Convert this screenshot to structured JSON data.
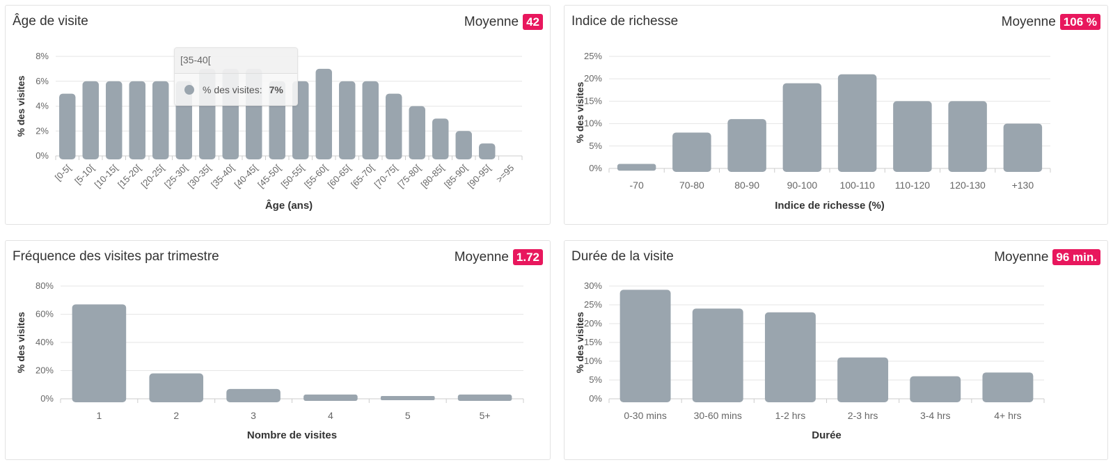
{
  "colors": {
    "bar": "#9aa5ae",
    "badge": "#e8175d",
    "grid": "#e6e6e6",
    "axis": "#cccccc"
  },
  "tooltip": {
    "title": "[35-40[",
    "series_label": "% des visites:",
    "value": "7%"
  },
  "chart_data": [
    {
      "id": "age",
      "type": "bar",
      "title": "Âge de visite",
      "average_label": "Moyenne",
      "average_value": "42",
      "xlabel": "Âge (ans)",
      "ylabel": "% des visites",
      "ylim": [
        0,
        8
      ],
      "yticks": [
        0,
        2,
        4,
        6,
        8
      ],
      "ytick_suffix": "%",
      "x_tick_rotation": "-45",
      "grid": true,
      "categories": [
        "[0-5[",
        "[5-10[",
        "[10-15[",
        "[15-20[",
        "[20-25[",
        "[25-30[",
        "[30-35[",
        "[35-40[",
        "[40-45[",
        "[45-50[",
        "[50-55[",
        "[55-60[",
        "[60-65[",
        "[65-70[",
        "[70-75[",
        "[75-80[",
        "[80-85[",
        "[85-90[",
        "[90-95[",
        ">=95"
      ],
      "values": [
        5,
        6,
        6,
        6,
        6,
        6,
        7,
        7,
        7,
        6,
        6,
        7,
        6,
        6,
        5,
        4,
        3,
        2,
        1,
        0
      ]
    },
    {
      "id": "wealth",
      "type": "bar",
      "title": "Indice de richesse",
      "average_label": "Moyenne",
      "average_value": "106 %",
      "xlabel": "Indice de richesse (%)",
      "ylabel": "% des visites",
      "ylim": [
        0,
        25
      ],
      "yticks": [
        0,
        5,
        10,
        15,
        20,
        25
      ],
      "ytick_suffix": "%",
      "grid": true,
      "categories": [
        "-70",
        "70-80",
        "80-90",
        "90-100",
        "100-110",
        "110-120",
        "120-130",
        "+130"
      ],
      "values": [
        1,
        8,
        11,
        19,
        21,
        15,
        15,
        10
      ]
    },
    {
      "id": "freq",
      "type": "bar",
      "title": "Fréquence des visites par trimestre",
      "average_label": "Moyenne",
      "average_value": "1.72",
      "xlabel": "Nombre de visites",
      "ylabel": "% des visites",
      "ylim": [
        0,
        80
      ],
      "yticks": [
        0,
        20,
        40,
        60,
        80
      ],
      "ytick_suffix": "%",
      "grid": true,
      "categories": [
        "1",
        "2",
        "3",
        "4",
        "5",
        "5+"
      ],
      "values": [
        67,
        18,
        7,
        3,
        2,
        3
      ]
    },
    {
      "id": "duration",
      "type": "bar",
      "title": "Durée de la visite",
      "average_label": "Moyenne",
      "average_value": "96 min.",
      "xlabel": "Durée",
      "ylabel": "% des visites",
      "ylim": [
        0,
        30
      ],
      "yticks": [
        0,
        5,
        10,
        15,
        20,
        25,
        30
      ],
      "ytick_suffix": "%",
      "grid": true,
      "categories": [
        "0-30 mins",
        "30-60 mins",
        "1-2 hrs",
        "2-3 hrs",
        "3-4 hrs",
        "4+ hrs"
      ],
      "values": [
        29,
        24,
        23,
        11,
        6,
        7
      ]
    }
  ]
}
